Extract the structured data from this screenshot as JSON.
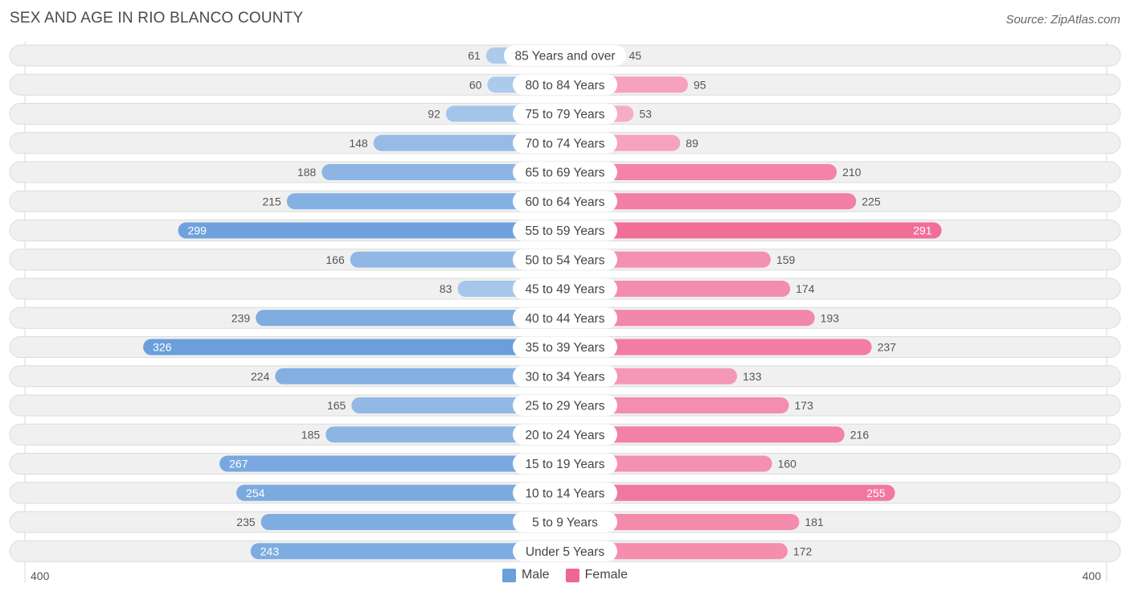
{
  "header": {
    "title": "SEX AND AGE IN RIO BLANCO COUNTY",
    "source": "Source: ZipAtlas.com"
  },
  "chart_data": {
    "type": "bar",
    "orientation": "horizontal-diverging",
    "title": "SEX AND AGE IN RIO BLANCO COUNTY",
    "categories": [
      "85 Years and over",
      "80 to 84 Years",
      "75 to 79 Years",
      "70 to 74 Years",
      "65 to 69 Years",
      "60 to 64 Years",
      "55 to 59 Years",
      "50 to 54 Years",
      "45 to 49 Years",
      "40 to 44 Years",
      "35 to 39 Years",
      "30 to 34 Years",
      "25 to 29 Years",
      "20 to 24 Years",
      "15 to 19 Years",
      "10 to 14 Years",
      "5 to 9 Years",
      "Under 5 Years"
    ],
    "series": [
      {
        "name": "Male",
        "values": [
          61,
          60,
          92,
          148,
          188,
          215,
          299,
          166,
          83,
          239,
          326,
          224,
          165,
          185,
          267,
          254,
          235,
          243
        ]
      },
      {
        "name": "Female",
        "values": [
          45,
          95,
          53,
          89,
          210,
          225,
          291,
          159,
          174,
          193,
          237,
          133,
          173,
          216,
          160,
          255,
          181,
          172
        ]
      }
    ],
    "axis": {
      "min_label": "400",
      "max_label": "400",
      "range": [
        0,
        400
      ]
    },
    "legend": {
      "placement": "bottom-center",
      "entries": [
        "Male",
        "Female"
      ]
    }
  },
  "colors": {
    "male": "#6a9fdc",
    "female": "#f06693",
    "row_background": "#f0f0f0",
    "row_border": "#dcdcdc"
  }
}
